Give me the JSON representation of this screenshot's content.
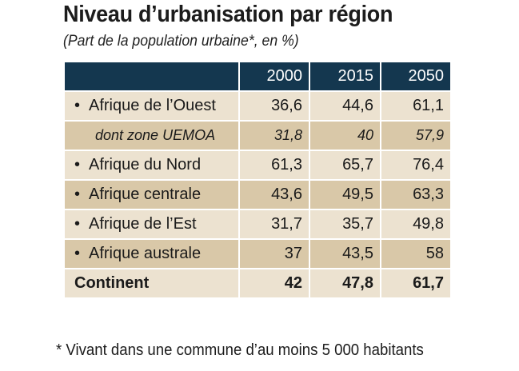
{
  "title": "Niveau d’urbanisation par région",
  "subtitle": "(Part de la population urbaine*, en %)",
  "footnote": "* Vivant dans une commune d’au moins 5 000 habitants",
  "bullet": "•",
  "colors": {
    "header": "#14374f",
    "row_light": "#ece2d0",
    "row_dark": "#d9c8a8"
  },
  "chart_data": {
    "type": "table",
    "columns": [
      "2000",
      "2015",
      "2050"
    ],
    "rows": [
      {
        "label": "Afrique de l’Ouest",
        "values": [
          "36,6",
          "44,6",
          "61,1"
        ],
        "bullet": true,
        "style": "normal",
        "shade": "light"
      },
      {
        "label": "dont zone UEMOA",
        "values": [
          "31,8",
          "40",
          "57,9"
        ],
        "bullet": false,
        "style": "italic",
        "shade": "dark"
      },
      {
        "label": "Afrique du Nord",
        "values": [
          "61,3",
          "65,7",
          "76,4"
        ],
        "bullet": true,
        "style": "normal",
        "shade": "light"
      },
      {
        "label": "Afrique centrale",
        "values": [
          "43,6",
          "49,5",
          "63,3"
        ],
        "bullet": true,
        "style": "normal",
        "shade": "dark"
      },
      {
        "label": "Afrique de l’Est",
        "values": [
          "31,7",
          "35,7",
          "49,8"
        ],
        "bullet": true,
        "style": "normal",
        "shade": "light"
      },
      {
        "label": "Afrique australe",
        "values": [
          "37",
          "43,5",
          "58"
        ],
        "bullet": true,
        "style": "normal",
        "shade": "dark"
      },
      {
        "label": "Continent",
        "values": [
          "42",
          "47,8",
          "61,7"
        ],
        "bullet": false,
        "style": "bold",
        "shade": "light"
      }
    ]
  }
}
